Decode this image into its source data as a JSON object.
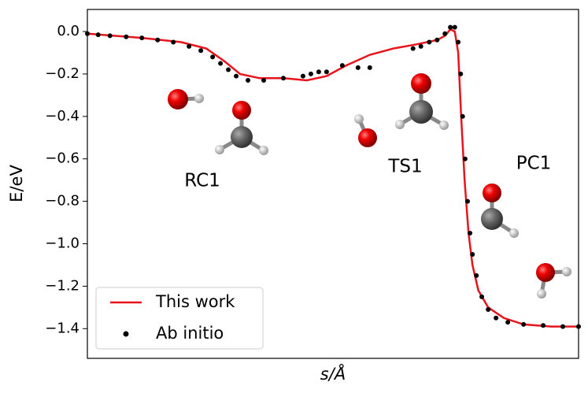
{
  "chart_data": {
    "type": "line",
    "xlabel": "s/Å",
    "ylabel": "E/eV",
    "xlim": [
      0,
      100
    ],
    "ylim": [
      -1.54,
      0.104
    ],
    "yticks": [
      {
        "value": 0.0,
        "label": "0.0"
      },
      {
        "value": -0.2,
        "label": "−0.2"
      },
      {
        "value": -0.4,
        "label": "−0.4"
      },
      {
        "value": -0.6,
        "label": "−0.6"
      },
      {
        "value": -0.8,
        "label": "−0.8"
      },
      {
        "value": -1.0,
        "label": "−1.0"
      },
      {
        "value": -1.2,
        "label": "−1.2"
      },
      {
        "value": -1.4,
        "label": "−1.4"
      }
    ],
    "legend": "lower left",
    "annotations": [
      "RC1",
      "TS1",
      "PC1"
    ],
    "series": [
      {
        "name": "This work",
        "type": "line",
        "color": "#e8141c",
        "x": [
          0,
          11.1,
          19.1,
          24.2,
          27.9,
          31.1,
          35.1,
          39.9,
          44.7,
          48.7,
          52.7,
          57.5,
          62.3,
          67.1,
          71.2,
          72.8,
          73.9,
          74.8,
          75.5,
          76.1,
          76.8,
          77.6,
          78.4,
          79.6,
          81.6,
          84.8,
          88.8,
          94.4,
          100
        ],
        "values": [
          -0.01,
          -0.03,
          -0.05,
          -0.08,
          -0.14,
          -0.2,
          -0.22,
          -0.22,
          -0.23,
          -0.21,
          -0.16,
          -0.11,
          -0.08,
          -0.06,
          -0.04,
          -0.02,
          0.01,
          0.0,
          -0.1,
          -0.4,
          -0.7,
          -0.95,
          -1.1,
          -1.22,
          -1.3,
          -1.35,
          -1.38,
          -1.39,
          -1.39
        ]
      },
      {
        "name": "Ab initio",
        "type": "scatter",
        "color": "#000000",
        "x": [
          0,
          2.2,
          4.6,
          7.9,
          11.1,
          14.3,
          17.5,
          20.7,
          23.1,
          25.5,
          27.1,
          28.7,
          30.3,
          32.7,
          35.9,
          39.9,
          43.9,
          45.5,
          47.1,
          48.7,
          51.9,
          55.1,
          57.5,
          66.3,
          67.9,
          69.6,
          71.2,
          72.8,
          73.9,
          74.8,
          75.5,
          76.0,
          76.4,
          76.9,
          77.4,
          77.9,
          78.4,
          79.2,
          80.3,
          81.6,
          83.2,
          85.6,
          88.8,
          92.8,
          96.8,
          100
        ],
        "values": [
          -0.01,
          -0.015,
          -0.02,
          -0.025,
          -0.03,
          -0.04,
          -0.05,
          -0.07,
          -0.09,
          -0.12,
          -0.15,
          -0.18,
          -0.21,
          -0.23,
          -0.23,
          -0.22,
          -0.21,
          -0.2,
          -0.19,
          -0.19,
          -0.16,
          -0.17,
          -0.17,
          -0.08,
          -0.07,
          -0.05,
          -0.04,
          -0.01,
          0.02,
          0.02,
          -0.05,
          -0.2,
          -0.4,
          -0.6,
          -0.8,
          -0.95,
          -1.05,
          -1.15,
          -1.25,
          -1.31,
          -1.35,
          -1.37,
          -1.38,
          -1.385,
          -1.39,
          -1.39
        ]
      }
    ]
  }
}
